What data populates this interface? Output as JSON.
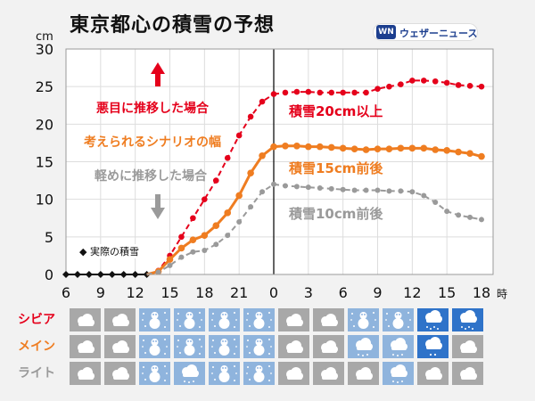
{
  "title": "東京都心の積雪の予想",
  "brand": {
    "logo_text": "WN",
    "name": "ウェザーニュース"
  },
  "chart_data": {
    "type": "line",
    "unit": "cm",
    "ylim": [
      0,
      30
    ],
    "yticks": [
      0,
      5,
      10,
      15,
      20,
      25,
      30
    ],
    "xtick_labels": [
      "6",
      "9",
      "12",
      "15",
      "18",
      "21",
      "0",
      "3",
      "6",
      "9",
      "12",
      "15",
      "18"
    ],
    "xtick_suffix": "時",
    "x_hours": [
      6,
      7,
      8,
      9,
      10,
      11,
      12,
      13,
      14,
      15,
      16,
      17,
      18,
      19,
      20,
      21,
      22,
      23,
      24,
      25,
      26,
      27,
      28,
      29,
      30,
      31,
      32,
      33,
      34,
      35,
      36,
      37,
      38,
      39,
      40,
      41,
      42
    ],
    "actual": {
      "name": "実際の積雪",
      "x": [
        6,
        7,
        8,
        9,
        10,
        11,
        12,
        13
      ],
      "values": [
        0,
        0,
        0,
        0,
        0,
        0,
        0,
        0
      ]
    },
    "series": [
      {
        "name": "積雪20cm以上",
        "color": "#e5001b",
        "x": [
          13,
          14,
          15,
          16,
          17,
          18,
          19,
          20,
          21,
          22,
          23,
          24,
          25,
          26,
          27,
          28,
          29,
          30,
          31,
          32,
          33,
          34,
          35,
          36,
          37,
          38,
          39,
          40,
          41,
          42
        ],
        "values": [
          0,
          0.5,
          2.5,
          5,
          7.5,
          10,
          12.5,
          15.5,
          18.5,
          21,
          23,
          24,
          24.2,
          24.3,
          24.3,
          24.2,
          24.2,
          24.2,
          24.2,
          24.2,
          24.7,
          25,
          25.3,
          25.8,
          25.8,
          25.7,
          25.5,
          25.2,
          25.1,
          25
        ]
      },
      {
        "name": "積雪15cm前後",
        "color": "#ef7d21",
        "x": [
          13,
          14,
          15,
          16,
          17,
          18,
          19,
          20,
          21,
          22,
          23,
          24,
          25,
          26,
          27,
          28,
          29,
          30,
          31,
          32,
          33,
          34,
          35,
          36,
          37,
          38,
          39,
          40,
          41,
          42
        ],
        "values": [
          0,
          0.4,
          2,
          3.5,
          4.6,
          5.2,
          6.5,
          8.2,
          10.5,
          13.5,
          15.8,
          17,
          17.1,
          17.1,
          17,
          17,
          16.9,
          16.8,
          16.7,
          16.6,
          16.7,
          16.7,
          16.8,
          16.8,
          16.8,
          16.6,
          16.5,
          16.3,
          16.1,
          15.7
        ]
      },
      {
        "name": "積雪10cm前後",
        "color": "#9a9a9a",
        "x": [
          13,
          14,
          15,
          16,
          17,
          18,
          19,
          20,
          21,
          22,
          23,
          24,
          25,
          26,
          27,
          28,
          29,
          30,
          31,
          32,
          33,
          34,
          35,
          36,
          37,
          38,
          39,
          40,
          41,
          42
        ],
        "values": [
          0,
          0.3,
          1.2,
          2.3,
          3,
          3.2,
          4,
          5.2,
          7,
          9,
          11,
          12,
          11.8,
          11.7,
          11.6,
          11.5,
          11.4,
          11.3,
          11.2,
          11.2,
          11.2,
          11.1,
          11.1,
          11,
          10.5,
          9.6,
          8.4,
          7.9,
          7.6,
          7.3
        ]
      }
    ],
    "annotations": {
      "worse": "悪目に推移した場合",
      "range": "考えられるシナリオの幅",
      "lighter": "軽めに推移した場合"
    }
  },
  "weather_rows": [
    {
      "label": "シビア",
      "color": "#e5001b",
      "cells": [
        "cloud",
        "cloud",
        "snow",
        "snow",
        "snow",
        "snow",
        "cloud",
        "cloud",
        "snow",
        "snow",
        "heavy-snow",
        "heavy-snow"
      ]
    },
    {
      "label": "メイン",
      "color": "#ef7d21",
      "cells": [
        "cloud",
        "cloud",
        "snow",
        "snow",
        "snow",
        "snow",
        "cloud",
        "cloud",
        "snow-cloud",
        "snow-cloud",
        "rain-cloud",
        "cloud"
      ]
    },
    {
      "label": "ライト",
      "color": "#9a9a9a",
      "cells": [
        "cloud",
        "cloud",
        "snow",
        "snow-cloud",
        "snow",
        "snow",
        "cloud",
        "cloud",
        "cloud",
        "snow-cloud",
        "cloud",
        "cloud"
      ]
    }
  ],
  "weather_colors": {
    "cloud": "#a8a8a8",
    "snow": "#8fb4dd",
    "snow-cloud": "#8fb4dd",
    "heavy-snow": "#2f73c9",
    "rain-cloud": "#2f73c9"
  }
}
